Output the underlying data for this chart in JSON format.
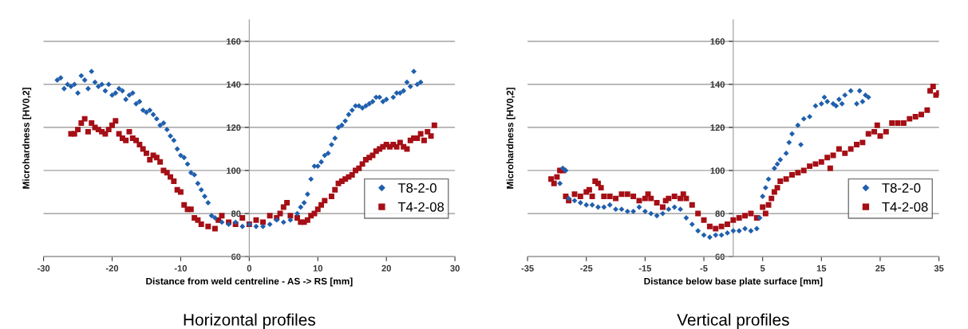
{
  "chart_data": [
    {
      "type": "scatter",
      "xlabel": "Distance from weld centreline - AS -> RS [mm]",
      "ylabel": "Microhardness [HV0,2]",
      "annotations": [
        "Horizontal profiles"
      ],
      "xlim": [
        -30,
        30
      ],
      "xticks": [
        -30,
        -20,
        -10,
        0,
        10,
        20,
        30
      ],
      "ylim": [
        60,
        170
      ],
      "yticks": [
        60,
        80,
        100,
        120,
        140,
        160
      ],
      "grid": "y",
      "legend": "right",
      "series": [
        {
          "name": "T8-2-0",
          "color": "#1f5fad",
          "marker": "diamond",
          "x": [
            -28,
            -27.5,
            -27,
            -26.5,
            -26,
            -25.5,
            -25,
            -24.5,
            -24,
            -23.5,
            -23,
            -22.5,
            -22,
            -21.5,
            -21,
            -20.5,
            -20,
            -19.5,
            -19,
            -18.5,
            -18,
            -17.5,
            -17,
            -16.5,
            -16,
            -15.5,
            -15,
            -14.5,
            -14,
            -13.5,
            -13,
            -12.5,
            -12,
            -11.5,
            -11,
            -10.5,
            -10,
            -9.5,
            -9,
            -8.5,
            -8,
            -7.5,
            -7,
            -6.5,
            -6,
            -5.5,
            -5,
            -4,
            -3,
            -2,
            -1,
            0,
            1,
            2,
            3,
            4,
            5,
            6,
            7,
            7.5,
            8,
            8.5,
            9,
            9.5,
            10,
            10.5,
            11,
            11.5,
            12,
            12.5,
            13,
            13.5,
            14,
            14.5,
            15,
            15.5,
            16,
            16.5,
            17,
            17.5,
            18,
            18.5,
            19,
            19.5,
            20,
            21,
            21.5,
            22,
            22.5,
            23,
            23.5,
            24,
            24.5,
            25
          ],
          "values": [
            142,
            143,
            138,
            140,
            139,
            140,
            136,
            144,
            142,
            138,
            146,
            141,
            139,
            140,
            137,
            140,
            135,
            136,
            138,
            137,
            133,
            135,
            136,
            131,
            132,
            128,
            127,
            128,
            126,
            124,
            121,
            122,
            119,
            116,
            114,
            110,
            107,
            106,
            103,
            99,
            98,
            94,
            91,
            88,
            85,
            79,
            78,
            76,
            75,
            76,
            74,
            75,
            74,
            74,
            75,
            77,
            76,
            77,
            80,
            83,
            85,
            89,
            96,
            102,
            102,
            104,
            107,
            108,
            112,
            115,
            120,
            121,
            123,
            126,
            128,
            130,
            130,
            129,
            130,
            131,
            132,
            134,
            134,
            132,
            133,
            134,
            136,
            136,
            137,
            141,
            139,
            146,
            140,
            141
          ]
        },
        {
          "name": "T4-2-08",
          "color": "#a50f15",
          "marker": "square",
          "x": [
            -26,
            -25.5,
            -25,
            -24.5,
            -24,
            -23.5,
            -23,
            -22.5,
            -22,
            -21.5,
            -21,
            -20.5,
            -20,
            -19.5,
            -19,
            -18.5,
            -18,
            -17.5,
            -17,
            -16.5,
            -16,
            -15.5,
            -15,
            -14.5,
            -14,
            -13.5,
            -13,
            -12.5,
            -12,
            -11.5,
            -11,
            -10.5,
            -10,
            -9.5,
            -9,
            -8.5,
            -8,
            -7.5,
            -7,
            -6,
            -5,
            -4.5,
            -4,
            -3,
            -2,
            -1,
            0,
            1,
            2,
            3,
            4,
            4.5,
            5,
            5.5,
            6,
            7,
            7.5,
            8,
            8.5,
            9,
            9.5,
            10,
            10.5,
            11,
            12,
            12.5,
            13,
            13.5,
            14,
            14.5,
            15,
            15.5,
            16,
            16.5,
            17,
            17.5,
            18,
            18.5,
            19,
            19.5,
            20,
            20.5,
            21,
            21.5,
            22,
            22.5,
            23,
            23.5,
            24,
            24.5,
            25,
            25.5,
            26,
            26.5,
            27
          ],
          "values": [
            117,
            117,
            119,
            122,
            124,
            118,
            122,
            120,
            119,
            118,
            117,
            119,
            121,
            123,
            117,
            115,
            114,
            118,
            115,
            114,
            112,
            110,
            108,
            105,
            107,
            106,
            104,
            100,
            99,
            97,
            95,
            91,
            90,
            84,
            82,
            82,
            78,
            77,
            75,
            74,
            73,
            77,
            79,
            76,
            75,
            78,
            75,
            77,
            76,
            79,
            78,
            80,
            83,
            85,
            79,
            78,
            76,
            76,
            77,
            79,
            80,
            82,
            84,
            86,
            88,
            91,
            94,
            95,
            96,
            97,
            98,
            100,
            101,
            103,
            105,
            106,
            107,
            109,
            110,
            111,
            112,
            111,
            112,
            111,
            113,
            111,
            110,
            114,
            115,
            115,
            117,
            114,
            118,
            116,
            121
          ]
        }
      ]
    },
    {
      "type": "scatter",
      "xlabel": "Distance below base plate surface [mm]",
      "ylabel": "Microhardness [HV0,2]",
      "annotations": [
        "Vertical profiles"
      ],
      "xlim": [
        -35,
        35
      ],
      "xticks": [
        -35,
        -25,
        -15,
        -5,
        5,
        15,
        25,
        35
      ],
      "ylim": [
        60,
        170
      ],
      "yticks": [
        60,
        80,
        100,
        120,
        140,
        160
      ],
      "grid": "y",
      "legend": "right",
      "series": [
        {
          "name": "T8-2-0",
          "color": "#1f5fad",
          "marker": "diamond",
          "x": [
            -29.5,
            -29,
            -28.5,
            -28,
            -27,
            -26,
            -25,
            -24,
            -23,
            -22,
            -21,
            -20,
            -19,
            -18,
            -17,
            -16,
            -15,
            -14,
            -13,
            -12,
            -11,
            -10,
            -9,
            -8,
            -7,
            -6,
            -5,
            -4,
            -3,
            -2,
            -1,
            0,
            1,
            2,
            3,
            4,
            4.5,
            5,
            5.5,
            6,
            7,
            7.5,
            8,
            9,
            9.5,
            10,
            11,
            11.5,
            12,
            13,
            14,
            15,
            15.5,
            16,
            17,
            17.5,
            18,
            18.5,
            19,
            20,
            21,
            21.5,
            22,
            22.5,
            23
          ],
          "values": [
            94,
            101,
            100,
            87,
            86,
            85,
            84,
            84,
            83,
            83,
            84,
            82,
            82,
            81,
            81,
            83,
            81,
            80,
            79,
            80,
            82,
            83,
            82,
            78,
            75,
            72,
            70,
            69,
            70,
            70,
            71,
            72,
            72,
            73,
            72,
            73,
            78,
            88,
            92,
            96,
            101,
            103,
            105,
            108,
            113,
            117,
            121,
            112,
            124,
            125,
            130,
            131,
            134,
            132,
            131,
            130,
            133,
            131,
            135,
            137,
            131,
            137,
            132,
            135,
            134
          ]
        },
        {
          "name": "T4-2-08",
          "color": "#a50f15",
          "marker": "square",
          "x": [
            -31,
            -30.5,
            -30,
            -29.5,
            -29,
            -28.5,
            -28,
            -27,
            -26,
            -25,
            -24.5,
            -24,
            -23.5,
            -23,
            -22.5,
            -22,
            -21,
            -20,
            -19,
            -18,
            -17,
            -16,
            -15,
            -14.5,
            -14,
            -13,
            -12,
            -11.5,
            -11,
            -10,
            -9,
            -8.5,
            -8,
            -7,
            -6,
            -5,
            -4,
            -3,
            -2,
            -1,
            0,
            1,
            2,
            3,
            4,
            5,
            5.5,
            6,
            6.5,
            7,
            7.5,
            8,
            9,
            10,
            11,
            12,
            13,
            14,
            15,
            16,
            16.5,
            17,
            18,
            19,
            20,
            21,
            22,
            23,
            24,
            24.5,
            25,
            26,
            27,
            28,
            29,
            30,
            31,
            32,
            33,
            33.5,
            34,
            34.5,
            35
          ],
          "values": [
            96,
            94,
            97,
            100,
            100,
            88,
            86,
            89,
            88,
            90,
            91,
            88,
            95,
            94,
            92,
            88,
            88,
            87,
            89,
            89,
            88,
            86,
            87,
            89,
            87,
            85,
            83,
            86,
            87,
            88,
            87,
            89,
            87,
            84,
            80,
            77,
            74,
            73,
            74,
            75,
            77,
            78,
            79,
            80,
            78,
            83,
            80,
            84,
            87,
            90,
            92,
            95,
            96,
            98,
            99,
            100,
            102,
            103,
            104,
            106,
            101,
            107,
            110,
            108,
            110,
            112,
            113,
            117,
            118,
            121,
            116,
            118,
            122,
            122,
            122,
            124,
            125,
            126,
            128,
            137,
            139,
            135,
            136
          ]
        }
      ]
    }
  ]
}
